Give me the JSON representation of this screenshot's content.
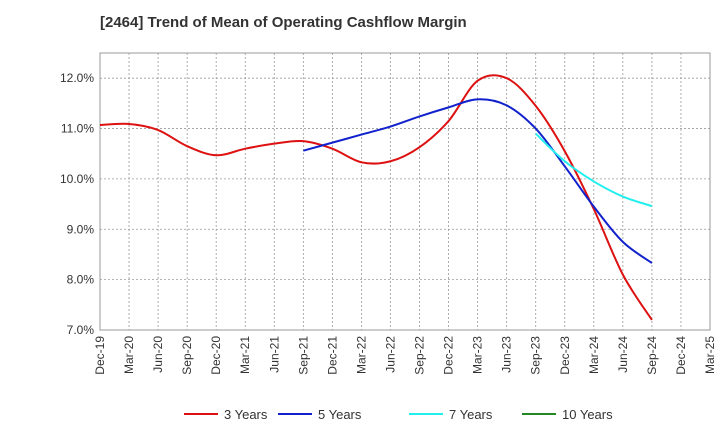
{
  "chart_data": {
    "type": "line",
    "title": "[2464]  Trend of Mean of Operating Cashflow Margin",
    "xlabel": "",
    "ylabel": "",
    "ylim": [
      7.0,
      12.5
    ],
    "y_ticks": [
      "7.0%",
      "8.0%",
      "9.0%",
      "10.0%",
      "11.0%",
      "12.0%"
    ],
    "y_tick_values": [
      7.0,
      8.0,
      9.0,
      10.0,
      11.0,
      12.0
    ],
    "categories": [
      "Dec-19",
      "Mar-20",
      "Jun-20",
      "Sep-20",
      "Dec-20",
      "Mar-21",
      "Jun-21",
      "Sep-21",
      "Dec-21",
      "Mar-22",
      "Jun-22",
      "Sep-22",
      "Dec-22",
      "Mar-23",
      "Jun-23",
      "Sep-23",
      "Dec-23",
      "Mar-24",
      "Jun-24",
      "Sep-24",
      "Dec-24",
      "Mar-25"
    ],
    "grid": true,
    "legend_position": "bottom",
    "series": [
      {
        "name": "3 Years",
        "color": "#dd1111",
        "values": [
          11.07,
          11.09,
          10.97,
          10.65,
          10.47,
          10.6,
          10.7,
          10.75,
          10.6,
          10.33,
          10.35,
          10.63,
          11.15,
          11.95,
          12.0,
          11.45,
          10.55,
          9.4,
          8.1,
          7.2,
          null,
          null
        ]
      },
      {
        "name": "5 Years",
        "color": "#1122cc",
        "values": [
          null,
          null,
          null,
          null,
          null,
          null,
          null,
          10.56,
          10.72,
          10.88,
          11.04,
          11.24,
          11.42,
          11.58,
          11.46,
          11.0,
          10.25,
          9.45,
          8.75,
          8.33,
          null,
          null
        ]
      },
      {
        "name": "7 Years",
        "color": "#22eeee",
        "values": [
          null,
          null,
          null,
          null,
          null,
          null,
          null,
          null,
          null,
          null,
          null,
          null,
          null,
          null,
          null,
          10.9,
          10.35,
          9.95,
          9.65,
          9.46,
          null,
          null
        ]
      },
      {
        "name": "10 Years",
        "color": "#228822",
        "values": [
          null,
          null,
          null,
          null,
          null,
          null,
          null,
          null,
          null,
          null,
          null,
          null,
          null,
          null,
          null,
          null,
          null,
          null,
          null,
          null,
          null,
          null
        ]
      }
    ]
  }
}
